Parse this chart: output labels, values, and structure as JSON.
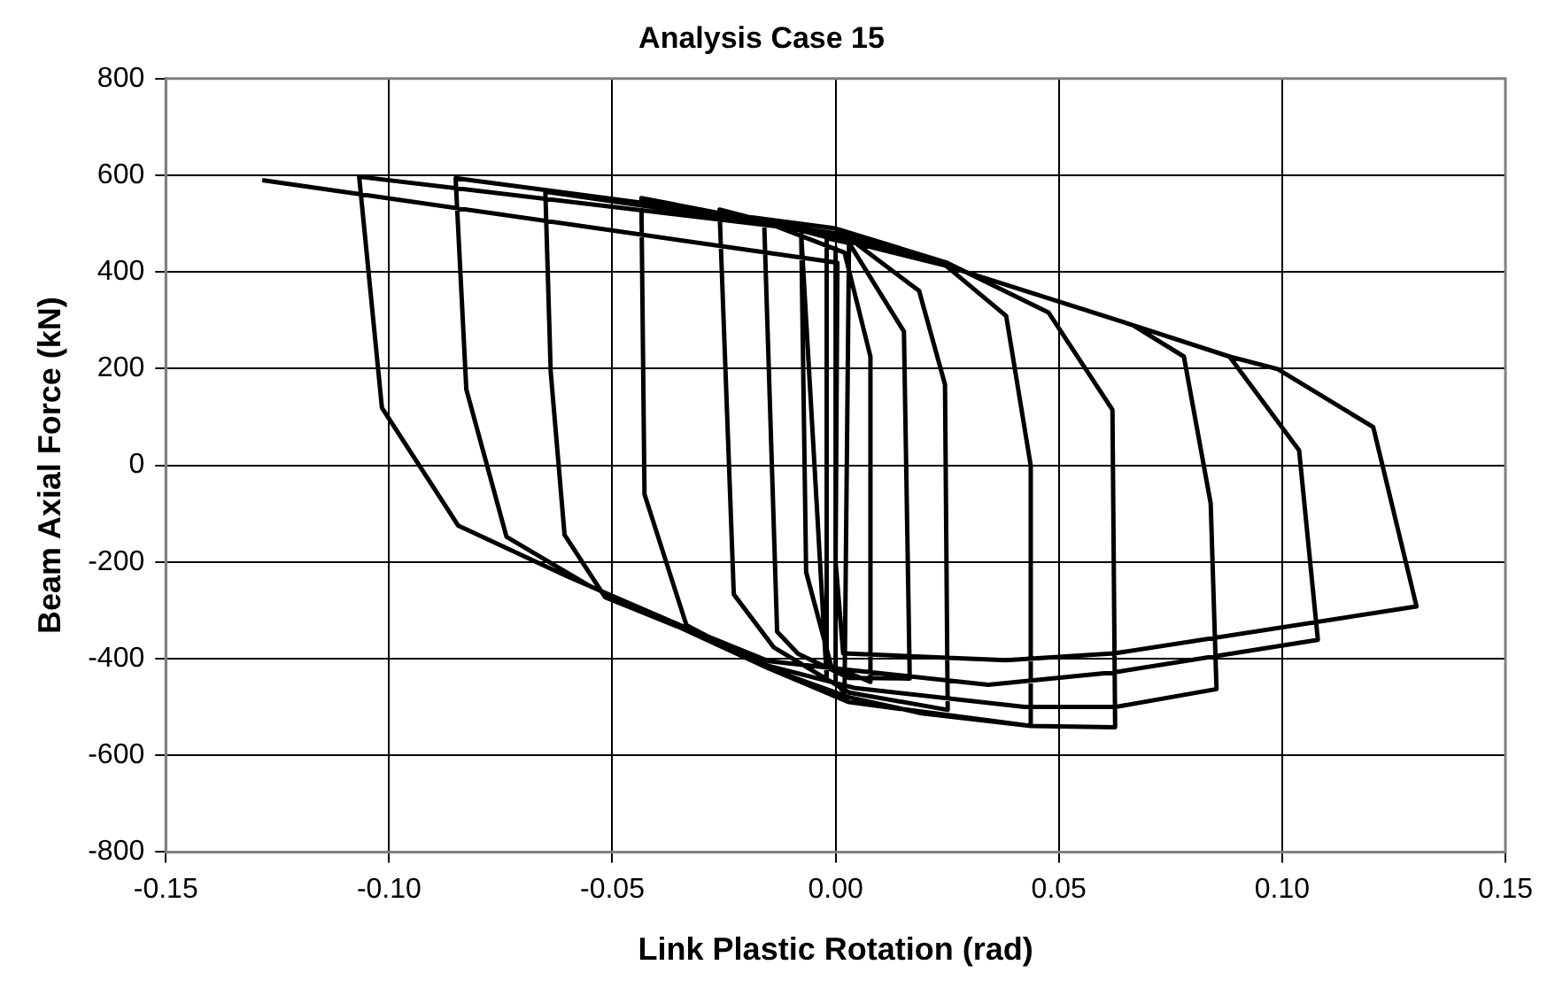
{
  "chart_data": {
    "type": "line",
    "title": "Analysis Case 15",
    "xlabel": "Link Plastic Rotation (rad)",
    "ylabel": "Beam Axial Force (kN)",
    "xlim": [
      -0.15,
      0.15
    ],
    "xticks": [
      -0.15,
      {
        "value": -0.1,
        "label": "-0.10"
      },
      -0.05,
      {
        "value": 0,
        "label": "0.00"
      },
      0.05,
      {
        "value": 0.1,
        "label": "0.10"
      },
      0.15
    ],
    "ylim": [
      -800,
      800
    ],
    "yticks": [
      -800,
      -600,
      -400,
      -200,
      0,
      200,
      400,
      600,
      800
    ],
    "grid": true,
    "legend": false,
    "marker": "none",
    "line_style": "solid",
    "series": [
      {
        "color": "#000000",
        "x": [
          0,
          0,
          0.002,
          0.003,
          -0.002,
          -0.002,
          -0.0077,
          -0.0066,
          -0.001,
          0.0078,
          0.0078,
          0.002,
          -0.016,
          -0.0131,
          -0.0084,
          0.003,
          0.0166,
          0.0153,
          0.003,
          -0.026,
          -0.0228,
          -0.0138,
          0.003,
          0.0251,
          0.0245,
          0.0187,
          0.003,
          -0.0435,
          -0.0428,
          -0.0334,
          -0.015,
          0.003,
          0.0193,
          0.0437,
          0.0437,
          0.0382,
          0.0247,
          0,
          -0.065,
          -0.0638,
          -0.0607,
          -0.0516,
          -0.035,
          -0.015,
          0.003,
          0.0437,
          0.0626,
          0.062,
          0.0477,
          0.0247,
          0,
          -0.0851,
          -0.0827,
          -0.0737,
          -0.055,
          -0.035,
          -0.015,
          0.0045,
          0.0423,
          0.0626,
          0.0853,
          0.084,
          0.078,
          0.0666,
          0.0247,
          0,
          -0.1067,
          -0.1016,
          -0.0845,
          -0.06,
          -0.035,
          -0.015,
          0.0017,
          0.0342,
          0.0626,
          0.108,
          0.1038,
          0.0882,
          0.0666,
          0.0247,
          0,
          0.0247,
          0.0666,
          0.0882,
          0.099,
          0.1204,
          0.1301,
          0.0624,
          0.0382,
          0.0017,
          0,
          0.0004,
          -0.1284
        ],
        "values": [
          450,
          -450,
          -470,
          460,
          470,
          -440,
          478,
          -221,
          -415,
          -448,
          225,
          440,
          504,
          -344,
          -390,
          -440,
          -441,
          277,
          460,
          529,
          -267,
          -377,
          -470,
          -506,
          167,
          361,
          470,
          553,
          -60,
          -331,
          -420,
          -480,
          -513,
          -539,
          -1,
          309,
          413,
          480,
          566,
          193,
          -144,
          -273,
          -335,
          -420,
          -490,
          -539,
          -542,
          115,
          316,
          420,
          490,
          594,
          157,
          -148,
          -250,
          -335,
          -415,
          -461,
          -500,
          -500,
          -463,
          -79,
          225,
          290,
          413,
          480,
          597,
          119,
          -125,
          -230,
          -330,
          -405,
          -422,
          -454,
          -428,
          -361,
          31,
          225,
          290,
          413,
          470,
          413,
          290,
          225,
          199,
          79,
          -292,
          -389,
          -403,
          -389,
          -200,
          419,
          590
        ]
      }
    ]
  }
}
